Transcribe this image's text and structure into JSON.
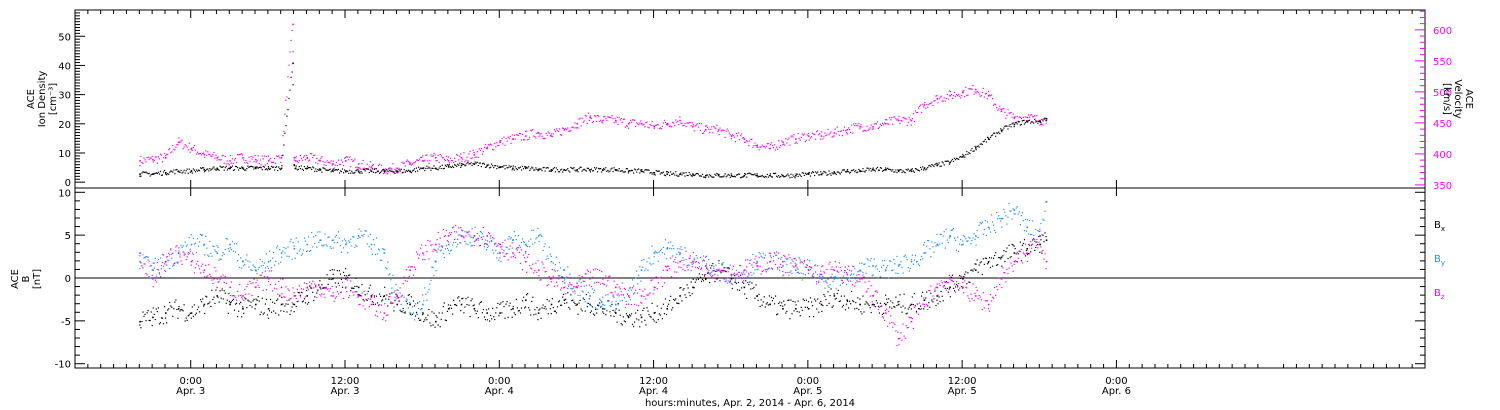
{
  "chart_data": [
    {
      "type": "scatter",
      "panel": "upper",
      "ylabel_left": [
        "ACE",
        "Ion Density",
        "[cm⁻³]"
      ],
      "ylabel_right": [
        "ACE",
        "Velocity",
        "[km/s]"
      ],
      "ylim_left": [
        -2,
        59
      ],
      "ylim_right": [
        345,
        632
      ],
      "yticks_left": [
        0,
        10,
        20,
        30,
        40,
        50
      ],
      "yticks_right": [
        350,
        400,
        450,
        500,
        550,
        600
      ],
      "colors": {
        "density": "#000000",
        "velocity": "#ff00ff"
      },
      "series": [
        {
          "axis": "left",
          "color": "#000000",
          "x": [
            -4,
            -3,
            -2,
            -1,
            0,
            1,
            2,
            3,
            4,
            5,
            6,
            7,
            7.9,
            8,
            8.1,
            9,
            10,
            11,
            12,
            13,
            14,
            15,
            16,
            17,
            18,
            19,
            20,
            21,
            22,
            23,
            24,
            25,
            26,
            27,
            28,
            29,
            30,
            31,
            32,
            33,
            34,
            35,
            36,
            37,
            38,
            39,
            40,
            41,
            42,
            43,
            44,
            45,
            46,
            47,
            48,
            49,
            50,
            51,
            52,
            53,
            54,
            55,
            56,
            57,
            58,
            59,
            60,
            61,
            62,
            63,
            64,
            65,
            66,
            66.5
          ],
          "values": [
            3,
            3,
            3.5,
            4,
            4,
            4.5,
            5,
            5,
            5,
            5,
            5,
            5,
            41,
            6,
            5,
            5,
            4.5,
            4,
            4,
            4,
            4,
            4,
            4,
            4,
            5,
            5,
            5.5,
            6,
            6.5,
            6,
            5.5,
            5,
            5,
            4.5,
            4.5,
            4.5,
            4.5,
            4.5,
            4.5,
            4.5,
            4,
            4,
            3.5,
            3,
            3,
            3,
            2.5,
            2.5,
            2.5,
            2.5,
            2.5,
            2.5,
            2.5,
            2.5,
            3,
            3,
            3.5,
            4,
            4,
            4.5,
            4.5,
            4,
            4,
            5,
            6,
            7,
            9,
            12,
            15,
            18,
            20,
            21,
            21,
            22
          ]
        },
        {
          "axis": "right",
          "color": "#ff00ff",
          "x": [
            -4,
            -3,
            -2,
            -1,
            0,
            1,
            2,
            3,
            4,
            5,
            6,
            7,
            7.9,
            8,
            8.1,
            9,
            10,
            11,
            12,
            13,
            14,
            15,
            16,
            17,
            18,
            19,
            20,
            21,
            22,
            23,
            24,
            25,
            26,
            27,
            28,
            29,
            30,
            31,
            32,
            33,
            34,
            35,
            36,
            37,
            38,
            39,
            40,
            41,
            42,
            43,
            44,
            45,
            46,
            47,
            48,
            49,
            50,
            51,
            52,
            53,
            54,
            55,
            56,
            57,
            58,
            59,
            60,
            61,
            62,
            63,
            64,
            65,
            66,
            66.5
          ],
          "values": [
            390,
            392,
            395,
            420,
            410,
            400,
            395,
            390,
            395,
            392,
            390,
            395,
            610,
            395,
            390,
            395,
            390,
            385,
            390,
            385,
            380,
            375,
            378,
            385,
            390,
            395,
            390,
            395,
            400,
            410,
            420,
            425,
            430,
            435,
            430,
            440,
            450,
            460,
            455,
            455,
            450,
            450,
            445,
            450,
            455,
            445,
            440,
            440,
            430,
            425,
            415,
            410,
            420,
            425,
            430,
            430,
            435,
            440,
            445,
            445,
            450,
            455,
            455,
            480,
            490,
            495,
            500,
            505,
            495,
            470,
            460,
            460,
            455,
            455
          ]
        }
      ]
    },
    {
      "type": "scatter",
      "panel": "lower",
      "ylabel_left": [
        "ACE",
        "B",
        "[nT]"
      ],
      "ylim": [
        -10.5,
        10.5
      ],
      "yticks": [
        -10,
        -5,
        0,
        5,
        10
      ],
      "zero_line": true,
      "legend_position": "right",
      "legend": [
        {
          "base": "B",
          "sub": "x",
          "color": "#000000"
        },
        {
          "base": "B",
          "sub": "y",
          "color": "#1e90ff"
        },
        {
          "base": "B",
          "sub": "z",
          "color": "#ff00ff"
        }
      ],
      "series": [
        {
          "name": "Bx",
          "color": "#000000",
          "x": [
            -4,
            -3,
            -2,
            -1,
            0,
            1,
            2,
            3,
            4,
            5,
            6,
            7,
            8,
            9,
            10,
            11,
            12,
            13,
            14,
            15,
            16,
            17,
            18,
            19,
            20,
            21,
            22,
            23,
            24,
            25,
            26,
            27,
            28,
            29,
            30,
            31,
            32,
            33,
            34,
            35,
            36,
            37,
            38,
            39,
            40,
            41,
            42,
            43,
            44,
            45,
            46,
            47,
            48,
            49,
            50,
            51,
            52,
            53,
            54,
            55,
            56,
            57,
            58,
            59,
            60,
            61,
            62,
            63,
            64,
            65,
            66,
            66.5
          ],
          "values": [
            -5,
            -4.5,
            -4,
            -3.5,
            -4,
            -3,
            -2,
            -3,
            -3.5,
            -3,
            -3.5,
            -3,
            -3,
            -2,
            -1,
            0,
            0,
            -1,
            -2,
            -2,
            -3,
            -3,
            -4,
            -5,
            -3.5,
            -3,
            -3.5,
            -4,
            -4,
            -3.5,
            -2.5,
            -4,
            -3,
            -2.5,
            -3,
            -3,
            -3.5,
            -4,
            -4.5,
            -4.5,
            -4,
            -3.5,
            -2,
            -1,
            0,
            1,
            0,
            -1,
            -2,
            -3,
            -3.5,
            -3.5,
            -3.5,
            -3,
            -2,
            -2.5,
            -3,
            -3,
            -3,
            -3,
            -3,
            -2.5,
            -2,
            -1,
            0,
            1,
            2,
            2.5,
            3,
            3.5,
            4,
            4.5
          ]
        },
        {
          "name": "By",
          "color": "#1e90ff",
          "x": [
            -4,
            -3,
            -2,
            -1,
            0,
            1,
            2,
            3,
            4,
            5,
            6,
            7,
            8,
            9,
            10,
            11,
            12,
            13,
            14,
            15,
            16,
            17,
            18,
            19,
            20,
            21,
            22,
            23,
            24,
            25,
            26,
            27,
            28,
            29,
            30,
            31,
            32,
            33,
            34,
            35,
            36,
            37,
            38,
            39,
            40,
            41,
            42,
            43,
            44,
            45,
            46,
            47,
            48,
            49,
            50,
            51,
            52,
            53,
            54,
            55,
            56,
            57,
            58,
            59,
            60,
            61,
            62,
            63,
            64,
            65,
            66,
            66.5
          ],
          "values": [
            2,
            1,
            2,
            3,
            4,
            4,
            3,
            4,
            2,
            1,
            2,
            3,
            3.5,
            4,
            4.5,
            4.5,
            4,
            5,
            4,
            3,
            -2,
            -4,
            -3,
            2,
            4,
            5,
            5,
            4,
            3,
            4.5,
            4,
            5,
            2,
            1,
            -1,
            -2,
            -3,
            -3,
            -2,
            1,
            3,
            3.5,
            3,
            2,
            1.5,
            1,
            0.5,
            1,
            2,
            2,
            1.5,
            1,
            1,
            0,
            0,
            0,
            1,
            1.5,
            1,
            1.5,
            2,
            3,
            4,
            5,
            4,
            5,
            6,
            7,
            8,
            6,
            5,
            9
          ]
        },
        {
          "name": "Bz",
          "color": "#ff00ff",
          "x": [
            -4,
            -3,
            -2,
            -1,
            0,
            1,
            2,
            3,
            4,
            5,
            6,
            7,
            8,
            9,
            10,
            11,
            12,
            13,
            14,
            15,
            16,
            17,
            18,
            19,
            20,
            21,
            22,
            23,
            24,
            25,
            26,
            27,
            28,
            29,
            30,
            31,
            32,
            33,
            34,
            35,
            36,
            37,
            38,
            39,
            40,
            41,
            42,
            43,
            44,
            45,
            46,
            47,
            48,
            49,
            50,
            51,
            52,
            53,
            54,
            55,
            56,
            57,
            58,
            59,
            60,
            61,
            62,
            63,
            64,
            65,
            66,
            66.5
          ],
          "values": [
            3,
            0,
            2,
            3,
            2,
            1,
            0,
            -1,
            -2,
            -1,
            0,
            -1,
            -2,
            -1,
            -1,
            -2,
            -1,
            -2,
            -3,
            -4,
            -2,
            1,
            3,
            4,
            5,
            5,
            5,
            5,
            4,
            3,
            2,
            1,
            0,
            -1,
            -1,
            0,
            0,
            -1,
            -2,
            -2,
            -1,
            1,
            2,
            2,
            1.5,
            1,
            0.5,
            1,
            1.5,
            2,
            2,
            1.5,
            1,
            0.5,
            1,
            0.5,
            0,
            -2,
            -4,
            -7,
            -5,
            -3,
            -1,
            0,
            -1,
            -2,
            -3,
            0,
            2,
            3,
            5,
            2
          ]
        }
      ]
    }
  ],
  "time_axis": {
    "range_hours": [
      -9,
      96
    ],
    "ticks": [
      {
        "hour": 0,
        "time": "0:00",
        "date": "Apr. 3"
      },
      {
        "hour": 12,
        "time": "12:00",
        "date": "Apr. 3"
      },
      {
        "hour": 24,
        "time": "0:00",
        "date": "Apr. 4"
      },
      {
        "hour": 36,
        "time": "12:00",
        "date": "Apr. 4"
      },
      {
        "hour": 48,
        "time": "0:00",
        "date": "Apr. 5"
      },
      {
        "hour": 60,
        "time": "12:00",
        "date": "Apr. 5"
      },
      {
        "hour": 72,
        "time": "0:00",
        "date": "Apr. 6"
      }
    ],
    "label": "hours:minutes, Apr.  2, 2014 - Apr.  6, 2014"
  }
}
